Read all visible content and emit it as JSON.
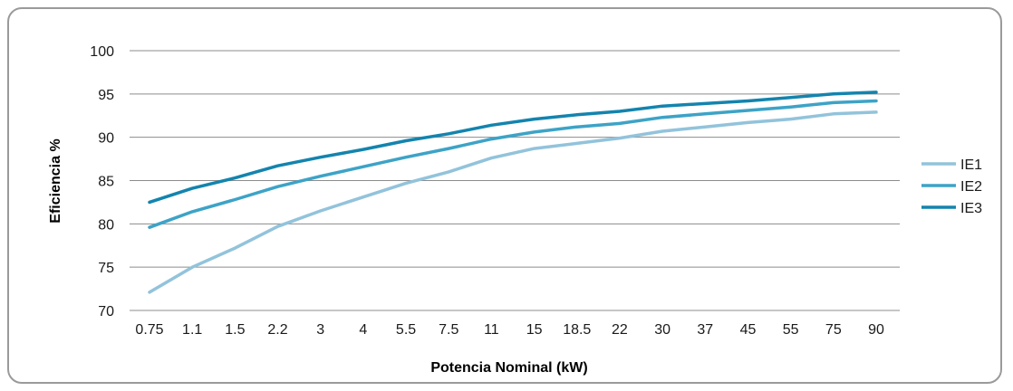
{
  "chart_data": {
    "type": "line",
    "title": "",
    "xlabel": "Potencia Nominal (kW)",
    "ylabel": "Eficiencia %",
    "categories": [
      "0.75",
      "1.1",
      "1.5",
      "2.2",
      "3",
      "4",
      "5.5",
      "7.5",
      "11",
      "15",
      "18.5",
      "22",
      "30",
      "37",
      "45",
      "55",
      "75",
      "90"
    ],
    "ylim": [
      70,
      100
    ],
    "yticks": [
      70,
      75,
      80,
      85,
      90,
      95,
      100
    ],
    "grid": true,
    "legend_position": "right",
    "series": [
      {
        "name": "IE1",
        "color": "#92c3db",
        "values": [
          72.1,
          75.0,
          77.2,
          79.7,
          81.5,
          83.1,
          84.7,
          86.0,
          87.6,
          88.7,
          89.3,
          89.9,
          90.7,
          91.2,
          91.7,
          92.1,
          92.7,
          92.9
        ]
      },
      {
        "name": "IE2",
        "color": "#3da3c7",
        "values": [
          79.6,
          81.4,
          82.8,
          84.3,
          85.5,
          86.6,
          87.7,
          88.7,
          89.8,
          90.6,
          91.2,
          91.6,
          92.3,
          92.7,
          93.1,
          93.5,
          94.0,
          94.2
        ]
      },
      {
        "name": "IE3",
        "color": "#1384ae",
        "values": [
          82.5,
          84.1,
          85.3,
          86.7,
          87.7,
          88.6,
          89.6,
          90.4,
          91.4,
          92.1,
          92.6,
          93.0,
          93.6,
          93.9,
          94.2,
          94.6,
          95.0,
          95.2
        ]
      }
    ]
  }
}
